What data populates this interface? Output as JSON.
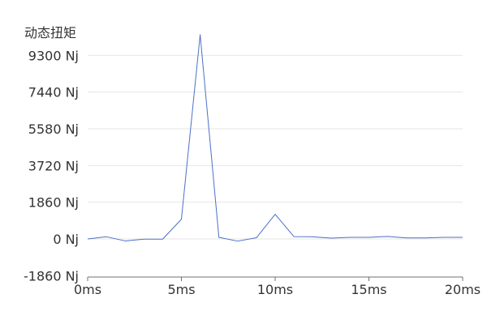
{
  "chart_data": {
    "type": "line",
    "title": "",
    "ylabel": "动态扭矩",
    "xlabel": "",
    "x_unit": "ms",
    "y_unit": "Nj",
    "x": [
      0,
      1,
      2,
      3,
      4,
      5,
      6,
      7,
      8,
      9,
      10,
      11,
      12,
      13,
      14,
      15,
      16,
      17,
      18,
      19,
      20
    ],
    "series": [
      {
        "name": "",
        "color": "#4c6fc8",
        "values": [
          0,
          110,
          -100,
          -10,
          -10,
          1000,
          10350,
          80,
          -110,
          60,
          1250,
          120,
          110,
          40,
          80,
          80,
          130,
          50,
          50,
          80,
          80
        ]
      }
    ],
    "xlim": [
      0,
      20
    ],
    "ylim": [
      -1860,
      10600
    ],
    "x_ticks": [
      0,
      5,
      10,
      15,
      20
    ],
    "x_tick_labels": [
      "0ms",
      "5ms",
      "10ms",
      "15ms",
      "20ms"
    ],
    "y_ticks": [
      -1860,
      0,
      1860,
      3720,
      5580,
      7440,
      9300
    ],
    "y_tick_labels": [
      "-1860 Nj",
      "0 Nj",
      "1860 Nj",
      "3720 Nj",
      "5580 Nj",
      "7440 Nj",
      "9300 Nj"
    ],
    "grid": true,
    "legend": "none"
  }
}
